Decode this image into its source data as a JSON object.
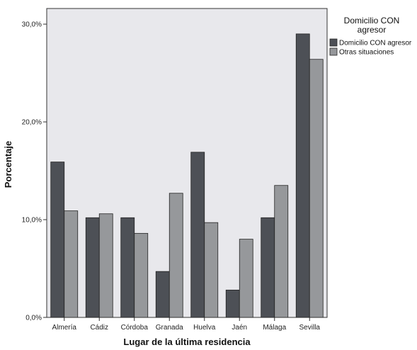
{
  "chart_data": {
    "type": "bar",
    "categories": [
      "Almería",
      "Cádiz",
      "Córdoba",
      "Granada",
      "Huelva",
      "Jaén",
      "Málaga",
      "Sevilla"
    ],
    "series": [
      {
        "name": "Domicilio CON agresor",
        "color": "#4d5056",
        "values": [
          15.9,
          10.2,
          10.2,
          4.7,
          16.9,
          2.8,
          10.2,
          29.0
        ]
      },
      {
        "name": "Otras situaciones",
        "color": "#96989b",
        "values": [
          10.9,
          10.6,
          8.6,
          12.7,
          9.7,
          8.0,
          13.5,
          26.4
        ]
      }
    ],
    "xlabel": "Lugar de la última residencia",
    "ylabel": "Porcentaje",
    "ylim": [
      0,
      31.6
    ],
    "yticks": [
      0,
      10,
      20,
      30
    ],
    "ytick_labels": [
      "0,0%",
      "10,0%",
      "20,0%",
      "30,0%"
    ],
    "legend_title": "Domicilio CON agresor",
    "legend_position": "top-right",
    "plot_background": "#e8e8ec",
    "grid": false
  }
}
